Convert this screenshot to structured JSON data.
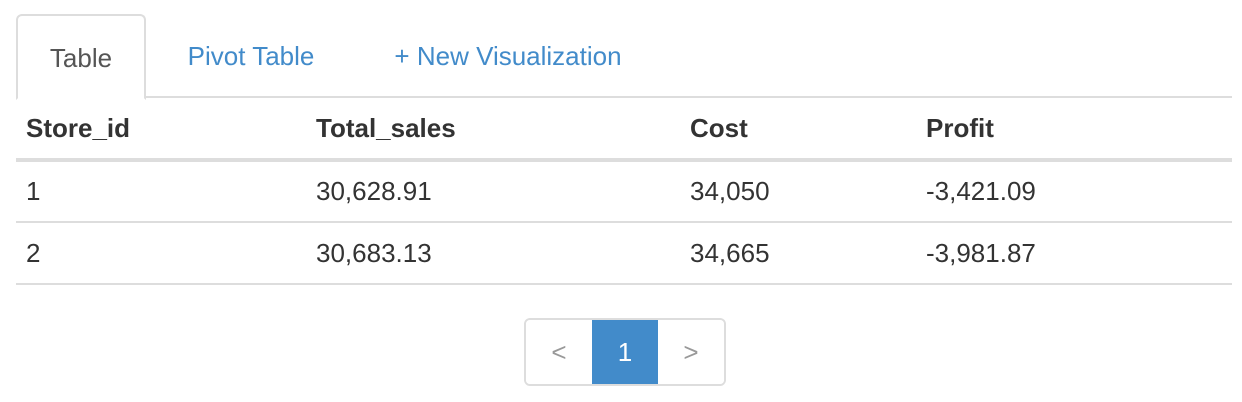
{
  "tabs": {
    "table": "Table",
    "pivot_table": "Pivot Table",
    "new_visualization": "+ New Visualization"
  },
  "table": {
    "columns": [
      "Store_id",
      "Total_sales",
      "Cost",
      "Profit"
    ],
    "rows": [
      [
        "1",
        "30,628.91",
        "34,050",
        "-3,421.09"
      ],
      [
        "2",
        "30,683.13",
        "34,665",
        "-3,981.87"
      ]
    ]
  },
  "pagination": {
    "prev": "<",
    "current": "1",
    "next": ">"
  },
  "colors": {
    "accent": "#428bca",
    "border": "#dddddd",
    "text": "#333333"
  }
}
